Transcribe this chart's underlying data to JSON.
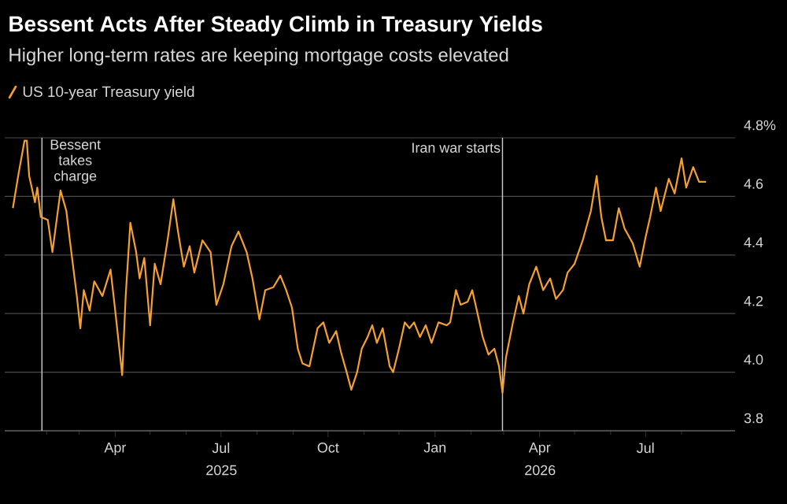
{
  "chart_data": {
    "type": "line",
    "title": "Bessent Acts After Steady Climb in Treasury Yields",
    "subtitle": "Higher long-term rates are keeping mortgage costs elevated",
    "x": [
      "2025-01-03",
      "2025-01-08",
      "2025-01-13",
      "2025-01-15",
      "2025-01-17",
      "2025-01-22",
      "2025-01-24",
      "2025-01-27",
      "2025-02-02",
      "2025-02-06",
      "2025-02-13",
      "2025-02-18",
      "2025-02-21",
      "2025-02-27",
      "2025-03-02",
      "2025-03-05",
      "2025-03-10",
      "2025-03-14",
      "2025-03-21",
      "2025-03-28",
      "2025-04-01",
      "2025-04-07",
      "2025-04-10",
      "2025-04-14",
      "2025-04-19",
      "2025-04-22",
      "2025-04-26",
      "2025-05-01",
      "2025-05-05",
      "2025-05-10",
      "2025-05-16",
      "2025-05-21",
      "2025-05-25",
      "2025-05-30",
      "2025-06-04",
      "2025-06-08",
      "2025-06-15",
      "2025-06-22",
      "2025-06-27",
      "2025-07-03",
      "2025-07-10",
      "2025-07-16",
      "2025-07-23",
      "2025-07-28",
      "2025-08-03",
      "2025-08-08",
      "2025-08-15",
      "2025-08-21",
      "2025-08-26",
      "2025-08-31",
      "2025-09-05",
      "2025-09-09",
      "2025-09-15",
      "2025-09-22",
      "2025-09-27",
      "2025-10-02",
      "2025-10-08",
      "2025-10-12",
      "2025-10-17",
      "2025-10-21",
      "2025-10-26",
      "2025-10-30",
      "2025-11-04",
      "2025-11-08",
      "2025-11-12",
      "2025-11-17",
      "2025-11-23",
      "2025-11-26",
      "2025-12-01",
      "2025-12-06",
      "2025-12-10",
      "2025-12-14",
      "2025-12-19",
      "2025-12-24",
      "2025-12-29",
      "2026-01-04",
      "2026-01-11",
      "2026-01-14",
      "2026-01-19",
      "2026-01-23",
      "2026-01-29",
      "2026-02-02",
      "2026-02-06",
      "2026-02-11",
      "2026-02-16",
      "2026-02-21",
      "2026-02-25",
      "2026-02-28",
      "2026-03-03",
      "2026-03-09",
      "2026-03-14",
      "2026-03-18",
      "2026-03-23",
      "2026-03-29",
      "2026-04-04",
      "2026-04-10",
      "2026-04-15",
      "2026-04-21",
      "2026-04-25",
      "2026-05-01",
      "2026-05-08",
      "2026-05-15",
      "2026-05-20",
      "2026-05-24",
      "2026-05-28",
      "2026-06-03",
      "2026-06-08",
      "2026-06-13",
      "2026-06-20",
      "2026-06-26",
      "2026-07-01",
      "2026-07-05",
      "2026-07-10",
      "2026-07-14",
      "2026-07-21",
      "2026-07-26",
      "2026-08-01",
      "2026-08-05",
      "2026-08-11",
      "2026-08-16",
      "2026-08-22"
    ],
    "series": [
      {
        "name": "US 10-year Treasury yield",
        "color": "#f5a030",
        "values": [
          4.56,
          4.68,
          4.79,
          4.79,
          4.67,
          4.58,
          4.63,
          4.53,
          4.52,
          4.41,
          4.62,
          4.55,
          4.45,
          4.26,
          4.15,
          4.28,
          4.21,
          4.31,
          4.26,
          4.35,
          4.21,
          3.99,
          4.26,
          4.51,
          4.41,
          4.32,
          4.39,
          4.16,
          4.37,
          4.3,
          4.45,
          4.59,
          4.48,
          4.36,
          4.43,
          4.34,
          4.45,
          4.41,
          4.23,
          4.3,
          4.43,
          4.48,
          4.41,
          4.32,
          4.18,
          4.28,
          4.29,
          4.33,
          4.28,
          4.22,
          4.08,
          4.03,
          4.02,
          4.15,
          4.17,
          4.1,
          4.14,
          4.07,
          4.0,
          3.94,
          4.0,
          4.08,
          4.12,
          4.16,
          4.1,
          4.15,
          4.02,
          4.0,
          4.08,
          4.17,
          4.15,
          4.17,
          4.12,
          4.16,
          4.1,
          4.17,
          4.16,
          4.17,
          4.28,
          4.23,
          4.24,
          4.28,
          4.21,
          4.12,
          4.06,
          4.08,
          4.02,
          3.93,
          4.05,
          4.17,
          4.26,
          4.2,
          4.3,
          4.36,
          4.28,
          4.32,
          4.25,
          4.28,
          4.34,
          4.37,
          4.45,
          4.55,
          4.67,
          4.53,
          4.45,
          4.45,
          4.56,
          4.49,
          4.44,
          4.36,
          4.46,
          4.53,
          4.63,
          4.55,
          4.66,
          4.61,
          4.73,
          4.63,
          4.7,
          4.65,
          4.65
        ]
      }
    ],
    "xlim": [
      "2024-12-27",
      "2026-09-16"
    ],
    "xticks": [
      {
        "value": "2025-02-01",
        "label": null
      },
      {
        "value": "2025-03-01",
        "label": null
      },
      {
        "value": "2025-04-01",
        "label": "Apr"
      },
      {
        "value": "2025-05-01",
        "label": null
      },
      {
        "value": "2025-06-01",
        "label": null
      },
      {
        "value": "2025-07-01",
        "label": "Jul"
      },
      {
        "value": "2025-08-01",
        "label": null
      },
      {
        "value": "2025-09-01",
        "label": null
      },
      {
        "value": "2025-10-01",
        "label": "Oct"
      },
      {
        "value": "2025-11-01",
        "label": null
      },
      {
        "value": "2025-12-01",
        "label": null
      },
      {
        "value": "2026-01-01",
        "label": "Jan"
      },
      {
        "value": "2026-02-01",
        "label": null
      },
      {
        "value": "2026-03-01",
        "label": null
      },
      {
        "value": "2026-04-01",
        "label": "Apr"
      },
      {
        "value": "2026-05-01",
        "label": null
      },
      {
        "value": "2026-06-01",
        "label": null
      },
      {
        "value": "2026-07-01",
        "label": "Jul"
      },
      {
        "value": "2026-08-01",
        "label": null
      }
    ],
    "ylim": [
      3.8,
      4.8
    ],
    "yticks": [
      3.8,
      {
        "value": 4.0,
        "label": "4.0"
      },
      4.2,
      4.4,
      4.6,
      {
        "value": 4.8,
        "label": "4.8%"
      }
    ],
    "grid": "y",
    "legend": "top left",
    "ref_lines": [
      {
        "axis": "x",
        "value": "2025-01-28",
        "label": "Bessent takes charge",
        "color": "#cccccc"
      },
      {
        "axis": "x",
        "value": "2026-02-28",
        "label": "Iran war starts",
        "color": "#cccccc"
      }
    ],
    "annotations": [
      "2025",
      "2026"
    ]
  }
}
